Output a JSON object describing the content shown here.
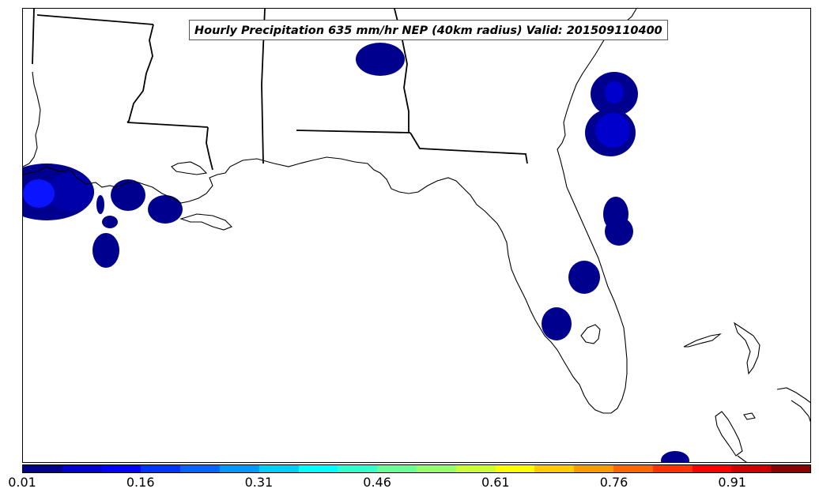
{
  "map": {
    "title": "Hourly Precipitation 635 mm/hr NEP (40km radius) Valid: 201509110400",
    "region": "Southeastern United States (Louisiana, Mississippi, Alabama, Georgia, Florida)"
  },
  "colorbar": {
    "colors": [
      "#00008f",
      "#0000cc",
      "#0000ff",
      "#0033ff",
      "#0066ff",
      "#0099ff",
      "#00ccff",
      "#00ffff",
      "#33ffcc",
      "#66ff99",
      "#99ff66",
      "#ccff33",
      "#ffff00",
      "#ffcc00",
      "#ff9900",
      "#ff6600",
      "#ff3300",
      "#ff0000",
      "#cc0000",
      "#8f0000"
    ],
    "tick_labels": [
      "0.01",
      "0.16",
      "0.31",
      "0.46",
      "0.61",
      "0.76",
      "0.91"
    ]
  },
  "probability_colors": {
    "low": "#00008f",
    "mid": "#0000cc",
    "high": "#0a14ff"
  }
}
